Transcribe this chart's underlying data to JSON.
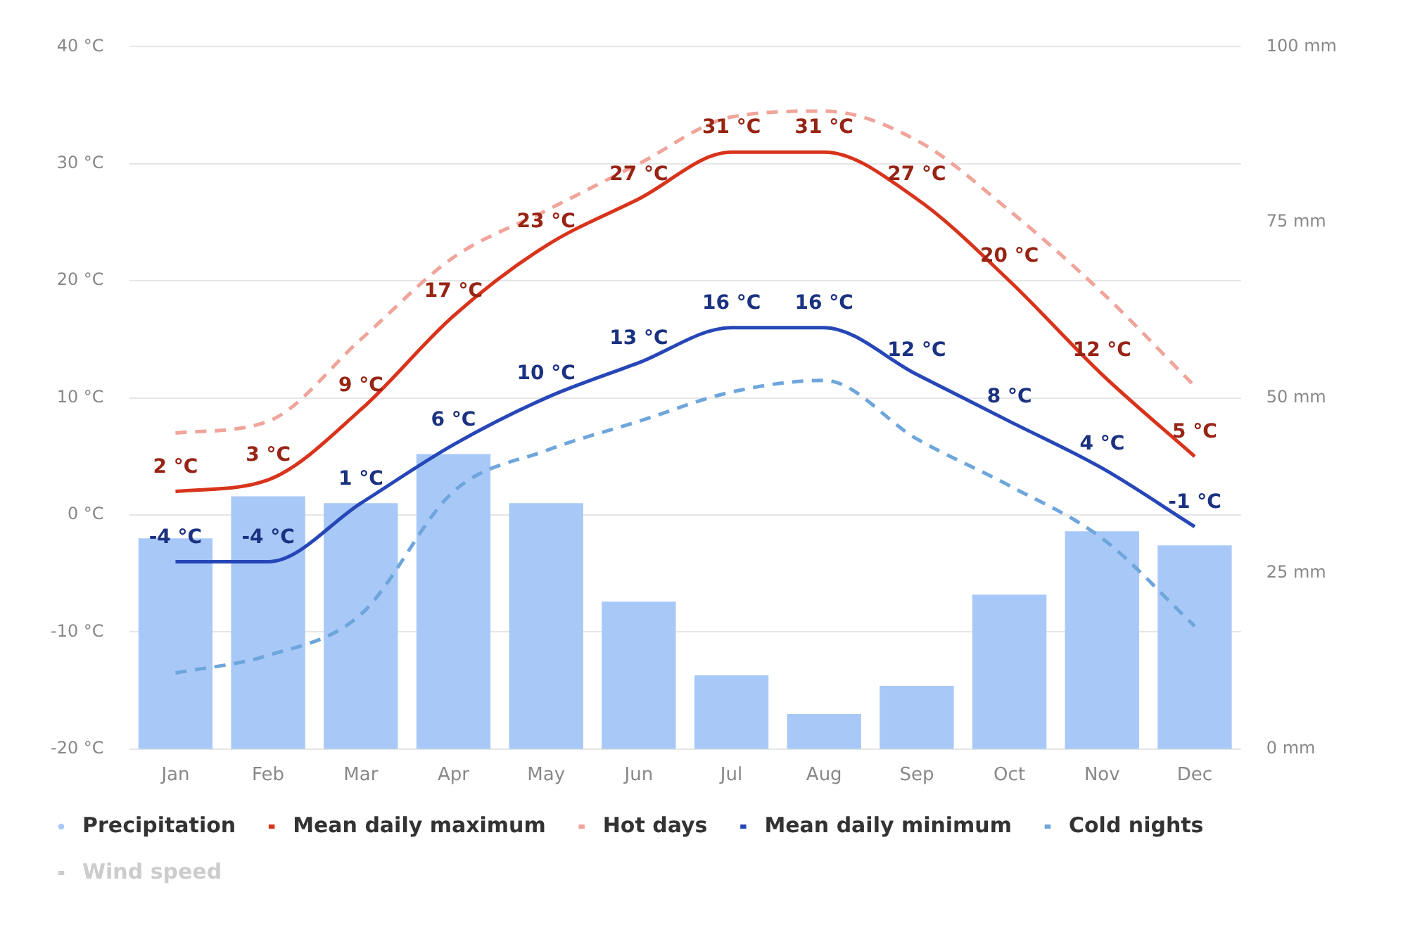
{
  "chart_data": {
    "type": "line",
    "categories": [
      "Jan",
      "Feb",
      "Mar",
      "Apr",
      "May",
      "Jun",
      "Jul",
      "Aug",
      "Sep",
      "Oct",
      "Nov",
      "Dec"
    ],
    "ylim": [
      -20,
      40
    ],
    "yticks": [
      {
        "value": -20,
        "label": "-20 °C"
      },
      {
        "value": -10,
        "label": "-10 °C"
      },
      {
        "value": 0,
        "label": "0 °C"
      },
      {
        "value": 10,
        "label": "10 °C"
      },
      {
        "value": 20,
        "label": "20 °C"
      },
      {
        "value": 30,
        "label": "30 °C"
      },
      {
        "value": 40,
        "label": "40 °C"
      }
    ],
    "y2lim": [
      0,
      100
    ],
    "y2ticks": [
      {
        "value": 0,
        "label": "0 mm"
      },
      {
        "value": 25,
        "label": "25 mm"
      },
      {
        "value": 50,
        "label": "50 mm"
      },
      {
        "value": 75,
        "label": "75 mm"
      },
      {
        "value": 100,
        "label": "100 mm"
      }
    ],
    "grid": "y",
    "legend": "bottom",
    "marker": "none",
    "series": [
      {
        "name": "Precipitation",
        "type": "bar",
        "axis": "y2",
        "color": "#a8c8f8",
        "values": [
          30,
          36,
          35,
          42,
          35,
          21,
          10.5,
          5,
          9,
          22,
          31,
          29
        ]
      },
      {
        "name": "Mean daily maximum",
        "color": "#d8341c",
        "line_style": "solid",
        "values": [
          2,
          3,
          9,
          17,
          23,
          27,
          31,
          31,
          27,
          20,
          12,
          5
        ],
        "value_labels": [
          "2 °C",
          "3 °C",
          "9 °C",
          "17 °C",
          "23 °C",
          "27 °C",
          "31 °C",
          "31 °C",
          "27 °C",
          "20 °C",
          "12 °C",
          "5 °C"
        ]
      },
      {
        "name": "Hot days",
        "color": "#f0a49a",
        "line_style": "dashed",
        "values": [
          7,
          8,
          15,
          22,
          26,
          30,
          34,
          34.5,
          32,
          26,
          19,
          11
        ]
      },
      {
        "name": "Mean daily minimum",
        "color": "#2747b8",
        "line_style": "solid",
        "values": [
          -4,
          -4,
          1,
          6,
          10,
          13,
          16,
          16,
          12,
          8,
          4,
          -1
        ],
        "value_labels": [
          "-4 °C",
          "-4 °C",
          "1 °C",
          "6 °C",
          "10 °C",
          "13 °C",
          "16 °C",
          "16 °C",
          "12 °C",
          "8 °C",
          "4 °C",
          "-1 °C"
        ]
      },
      {
        "name": "Cold nights",
        "color": "#6ea6dc",
        "line_style": "dashed",
        "values": [
          -13.5,
          -12,
          -8.5,
          2,
          5.5,
          8,
          10.5,
          11.5,
          6.5,
          2.5,
          -2,
          -9.5
        ]
      },
      {
        "name": "Wind speed",
        "color": "#cccccc",
        "line_style": "solid",
        "values": [
          null,
          null,
          null,
          null,
          null,
          null,
          null,
          null,
          null,
          null,
          null,
          null
        ]
      }
    ]
  }
}
